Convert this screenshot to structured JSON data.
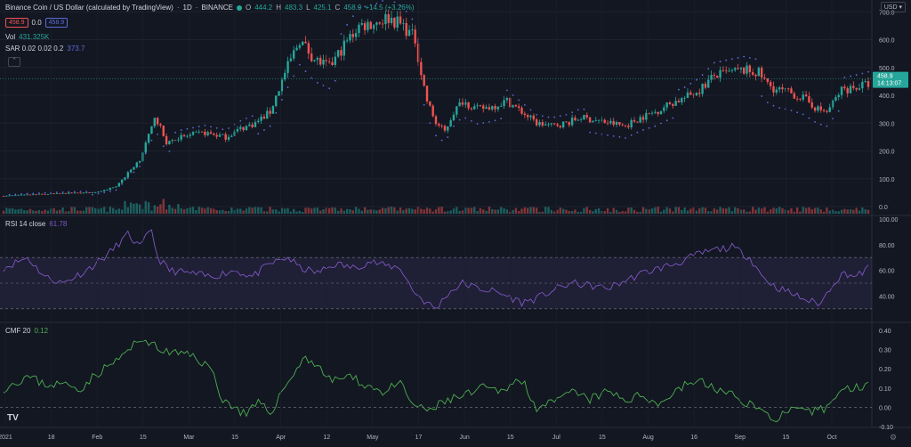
{
  "header": {
    "symbol_title": "Binance Coin / US Dollar (calculated by TradingView)",
    "interval": "1D",
    "exchange": "BINANCE",
    "ohlc": {
      "o_label": "O",
      "o": "444.2",
      "h_label": "H",
      "h": "483.3",
      "l_label": "L",
      "l": "425.1",
      "c_label": "C",
      "c": "458.9",
      "change": "+14.5 (+3.26%)"
    },
    "sell_price": "458.9",
    "spread": "0.0",
    "buy_price": "458.9"
  },
  "indicators": {
    "vol_label": "Vol",
    "vol_value": "431.325K",
    "sar_label": "SAR 0.02 0.02 0.2",
    "sar_value": "373.7",
    "rsi_label": "RSI 14 close",
    "rsi_value": "61.78",
    "cmf_label": "CMF 20",
    "cmf_value": "0.12"
  },
  "price_axis": {
    "currency": "USD",
    "price_ticks": [
      "700.0",
      "600.0",
      "500.0",
      "400.0",
      "300.0",
      "200.0",
      "100.0",
      "0.0"
    ],
    "last_price": "458.9",
    "countdown": "14:13:07",
    "rsi_ticks": [
      "100.00",
      "80.00",
      "60.00",
      "40.00"
    ],
    "cmf_ticks": [
      "0.40",
      "0.30",
      "0.20",
      "0.10",
      "0.00",
      "-0.10"
    ]
  },
  "time_axis": {
    "labels": [
      "2021",
      "18",
      "Feb",
      "15",
      "Mar",
      "15",
      "Apr",
      "12",
      "May",
      "17",
      "Jun",
      "15",
      "Jul",
      "15",
      "Aug",
      "16",
      "Sep",
      "15",
      "Oct"
    ]
  },
  "logo_text": "TV",
  "colors": {
    "up": "#26a69a",
    "down": "#ef5350",
    "rsi": "#7e57c2",
    "cmf": "#4caf50",
    "sar": "#5b6bd8",
    "bg": "#131722"
  },
  "chart_data": [
    {
      "type": "candlestick",
      "title": "Binance Coin / US Dollar (calculated by TradingView)",
      "ylim": [
        0,
        720
      ],
      "x_range": [
        "2021-01-01",
        "2021-10-19"
      ],
      "anchors": [
        [
          0,
          38
        ],
        [
          14,
          45
        ],
        [
          22,
          48
        ],
        [
          30,
          50
        ],
        [
          38,
          70
        ],
        [
          42,
          120
        ],
        [
          46,
          170
        ],
        [
          50,
          280
        ],
        [
          51,
          330
        ],
        [
          55,
          230
        ],
        [
          60,
          250
        ],
        [
          68,
          265
        ],
        [
          75,
          250
        ],
        [
          80,
          280
        ],
        [
          85,
          300
        ],
        [
          90,
          340
        ],
        [
          95,
          480
        ],
        [
          100,
          600
        ],
        [
          105,
          530
        ],
        [
          110,
          500
        ],
        [
          115,
          580
        ],
        [
          120,
          650
        ],
        [
          125,
          660
        ],
        [
          130,
          680
        ],
        [
          135,
          650
        ],
        [
          139,
          600
        ],
        [
          141,
          480
        ],
        [
          143,
          380
        ],
        [
          146,
          300
        ],
        [
          149,
          270
        ],
        [
          152,
          340
        ],
        [
          155,
          380
        ],
        [
          160,
          350
        ],
        [
          165,
          360
        ],
        [
          170,
          380
        ],
        [
          175,
          340
        ],
        [
          180,
          300
        ],
        [
          185,
          290
        ],
        [
          190,
          300
        ],
        [
          195,
          320
        ],
        [
          200,
          310
        ],
        [
          205,
          300
        ],
        [
          210,
          290
        ],
        [
          215,
          320
        ],
        [
          220,
          340
        ],
        [
          225,
          370
        ],
        [
          230,
          390
        ],
        [
          235,
          420
        ],
        [
          240,
          470
        ],
        [
          245,
          480
        ],
        [
          250,
          490
        ],
        [
          255,
          480
        ],
        [
          258,
          440
        ],
        [
          261,
          420
        ],
        [
          265,
          410
        ],
        [
          270,
          390
        ],
        [
          275,
          350
        ],
        [
          278,
          340
        ],
        [
          283,
          420
        ],
        [
          288,
          430
        ],
        [
          292,
          440
        ]
      ],
      "sar_ylim": [
        0,
        720
      ],
      "volume_note": "volume bars at bottom of price pane"
    },
    {
      "type": "line",
      "name": "RSI 14 close",
      "ylim": [
        25,
        100
      ],
      "bands": [
        30,
        70
      ],
      "anchors": [
        [
          0,
          62
        ],
        [
          8,
          70
        ],
        [
          14,
          55
        ],
        [
          20,
          50
        ],
        [
          28,
          60
        ],
        [
          35,
          72
        ],
        [
          42,
          88
        ],
        [
          46,
          78
        ],
        [
          50,
          92
        ],
        [
          52,
          70
        ],
        [
          56,
          60
        ],
        [
          62,
          58
        ],
        [
          70,
          55
        ],
        [
          78,
          60
        ],
        [
          84,
          55
        ],
        [
          90,
          65
        ],
        [
          96,
          70
        ],
        [
          100,
          62
        ],
        [
          106,
          58
        ],
        [
          112,
          65
        ],
        [
          118,
          62
        ],
        [
          124,
          67
        ],
        [
          128,
          64
        ],
        [
          134,
          62
        ],
        [
          138,
          45
        ],
        [
          142,
          36
        ],
        [
          146,
          30
        ],
        [
          150,
          42
        ],
        [
          155,
          50
        ],
        [
          160,
          46
        ],
        [
          165,
          44
        ],
        [
          170,
          40
        ],
        [
          175,
          35
        ],
        [
          180,
          38
        ],
        [
          186,
          45
        ],
        [
          192,
          50
        ],
        [
          198,
          48
        ],
        [
          204,
          46
        ],
        [
          210,
          52
        ],
        [
          216,
          58
        ],
        [
          222,
          62
        ],
        [
          228,
          66
        ],
        [
          234,
          72
        ],
        [
          240,
          76
        ],
        [
          246,
          78
        ],
        [
          252,
          70
        ],
        [
          256,
          56
        ],
        [
          260,
          48
        ],
        [
          264,
          44
        ],
        [
          268,
          40
        ],
        [
          272,
          36
        ],
        [
          276,
          34
        ],
        [
          280,
          50
        ],
        [
          284,
          58
        ],
        [
          288,
          55
        ],
        [
          292,
          62
        ]
      ]
    },
    {
      "type": "line",
      "name": "CMF 20",
      "ylim": [
        -0.14,
        0.42
      ],
      "anchors": [
        [
          0,
          0.1
        ],
        [
          8,
          0.16
        ],
        [
          14,
          0.12
        ],
        [
          20,
          0.12
        ],
        [
          26,
          0.1
        ],
        [
          32,
          0.18
        ],
        [
          38,
          0.24
        ],
        [
          44,
          0.32
        ],
        [
          48,
          0.36
        ],
        [
          52,
          0.3
        ],
        [
          58,
          0.28
        ],
        [
          64,
          0.27
        ],
        [
          70,
          0.2
        ],
        [
          74,
          0.04
        ],
        [
          78,
          0.0
        ],
        [
          82,
          -0.04
        ],
        [
          86,
          0.02
        ],
        [
          90,
          -0.03
        ],
        [
          94,
          0.08
        ],
        [
          98,
          0.18
        ],
        [
          102,
          0.26
        ],
        [
          106,
          0.22
        ],
        [
          110,
          0.14
        ],
        [
          116,
          0.16
        ],
        [
          122,
          0.12
        ],
        [
          128,
          0.08
        ],
        [
          134,
          0.12
        ],
        [
          138,
          0.02
        ],
        [
          142,
          -0.02
        ],
        [
          146,
          0.0
        ],
        [
          150,
          0.04
        ],
        [
          156,
          0.06
        ],
        [
          162,
          0.1
        ],
        [
          168,
          0.08
        ],
        [
          172,
          0.14
        ],
        [
          176,
          0.12
        ],
        [
          180,
          0.0
        ],
        [
          186,
          0.02
        ],
        [
          192,
          0.08
        ],
        [
          198,
          0.04
        ],
        [
          204,
          0.08
        ],
        [
          210,
          0.04
        ],
        [
          216,
          0.06
        ],
        [
          222,
          0.02
        ],
        [
          228,
          0.1
        ],
        [
          234,
          0.14
        ],
        [
          240,
          0.1
        ],
        [
          246,
          0.06
        ],
        [
          252,
          0.02
        ],
        [
          256,
          -0.02
        ],
        [
          260,
          -0.06
        ],
        [
          266,
          -0.02
        ],
        [
          272,
          -0.03
        ],
        [
          278,
          0.0
        ],
        [
          282,
          0.08
        ],
        [
          286,
          0.1
        ],
        [
          292,
          0.12
        ]
      ]
    }
  ]
}
